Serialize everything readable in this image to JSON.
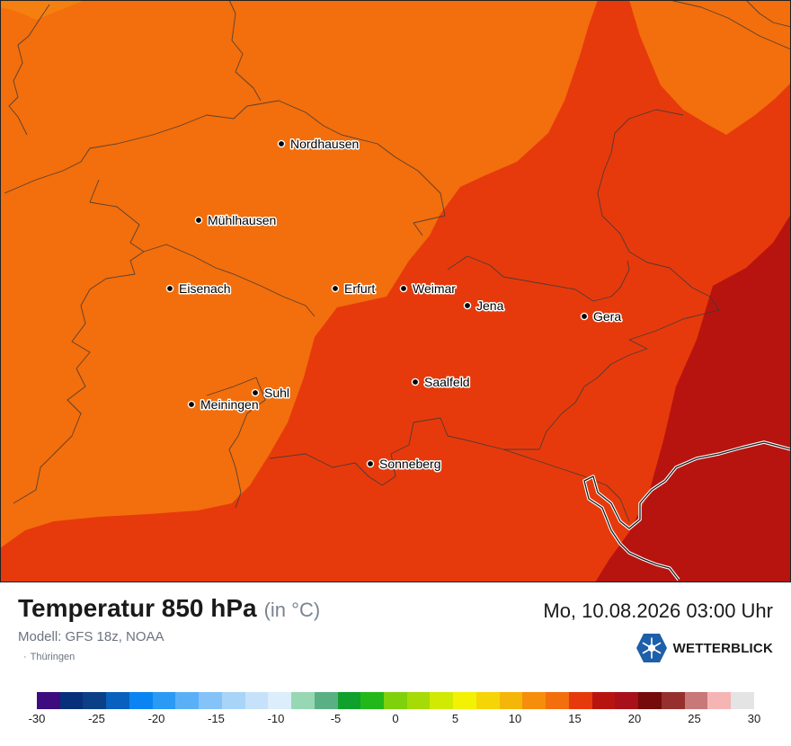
{
  "map": {
    "cities": [
      {
        "name": "Nordhausen"
      },
      {
        "name": "Mühlhausen"
      },
      {
        "name": "Eisenach"
      },
      {
        "name": "Erfurt"
      },
      {
        "name": "Weimar"
      },
      {
        "name": "Jena"
      },
      {
        "name": "Gera"
      },
      {
        "name": "Saalfeld"
      },
      {
        "name": "Suhl"
      },
      {
        "name": "Meiningen"
      },
      {
        "name": "Sonneberg"
      }
    ],
    "zone_colors": {
      "light": "#f36e0c",
      "medium": "#e63a0c",
      "dark": "#b8140f"
    }
  },
  "footer": {
    "title": "Temperatur 850 hPa",
    "unit": "(in °C)",
    "model": "Modell: GFS 18z, NOAA",
    "region": "Thüringen",
    "datetime": "Mo, 10.08.2026 03:00 Uhr",
    "brand": "WETTERBLICK"
  },
  "legend": {
    "colors": [
      "#3d0c7f",
      "#08307a",
      "#0b3f86",
      "#0960bf",
      "#0a84f2",
      "#2a9af5",
      "#5ab0f7",
      "#84c3f7",
      "#a8d4f8",
      "#c6e2fa",
      "#dceefb",
      "#98d7b3",
      "#5bb083",
      "#10a02c",
      "#23b81a",
      "#7fd10c",
      "#a6db08",
      "#d1ea03",
      "#f3f205",
      "#f5d508",
      "#f5b60a",
      "#f58e0b",
      "#f36e0c",
      "#e63a0c",
      "#b8140f",
      "#a8101a",
      "#760b0b",
      "#96302f",
      "#c87878",
      "#f5b5b5",
      "#e4e4e4"
    ],
    "ticks": [
      "-30",
      "-25",
      "-20",
      "-15",
      "-10",
      "-5",
      "0",
      "5",
      "10",
      "15",
      "20",
      "25",
      "30"
    ]
  }
}
